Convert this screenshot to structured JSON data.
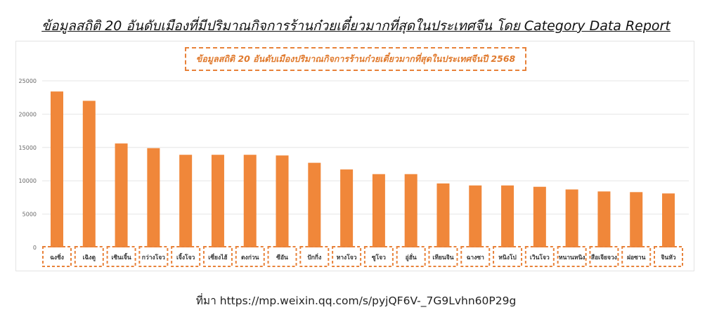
{
  "page": {
    "title": "ข้อมูลสถิติ 20 อันดับเมืองที่มีปริมาณกิจการร้านก๋วยเตี๋ยวมากที่สุดในประเทศจีน โดย Category Data Report",
    "source": "ที่มา https://mp.weixin.qq.com/s/pyjQF6V-_7G9Lvhn60P29g"
  },
  "colors": {
    "bar": "#f0873a",
    "dashed_border": "#e8823a",
    "grid": "#e6e6e6"
  },
  "chart_data": {
    "type": "bar",
    "title": "ข้อมูลสถิติ 20 อันดับเมืองปริมาณกิจการร้านก๋วยเตี๋ยวมากที่สุดในประเทศจีนปี 2568",
    "xlabel": "",
    "ylabel": "",
    "ylim": [
      0,
      25000
    ],
    "yticks": [
      0,
      5000,
      10000,
      15000,
      20000,
      25000
    ],
    "grid": true,
    "categories": [
      "ฉงชิ่ง",
      "เฉิงตู",
      "เซินเจิ้น",
      "กว่างโจว",
      "เจิ้งโจว",
      "เซี่ยงไฮ้",
      "ตงก่วน",
      "ซีอัน",
      "ปักกิ่ง",
      "หางโจว",
      "ซูโจว",
      "อู่ฮั่น",
      "เทียนจิน",
      "ฉางซา",
      "หนิงโป",
      "เวินโจว",
      "หนานหนิง",
      "สือเจียจวง",
      "ฝอซาน",
      "จินหัว"
    ],
    "values": [
      23400,
      22000,
      15600,
      14900,
      13900,
      13900,
      13900,
      13800,
      12700,
      11700,
      11000,
      11000,
      9600,
      9300,
      9300,
      9100,
      8700,
      8400,
      8300,
      8100
    ]
  }
}
